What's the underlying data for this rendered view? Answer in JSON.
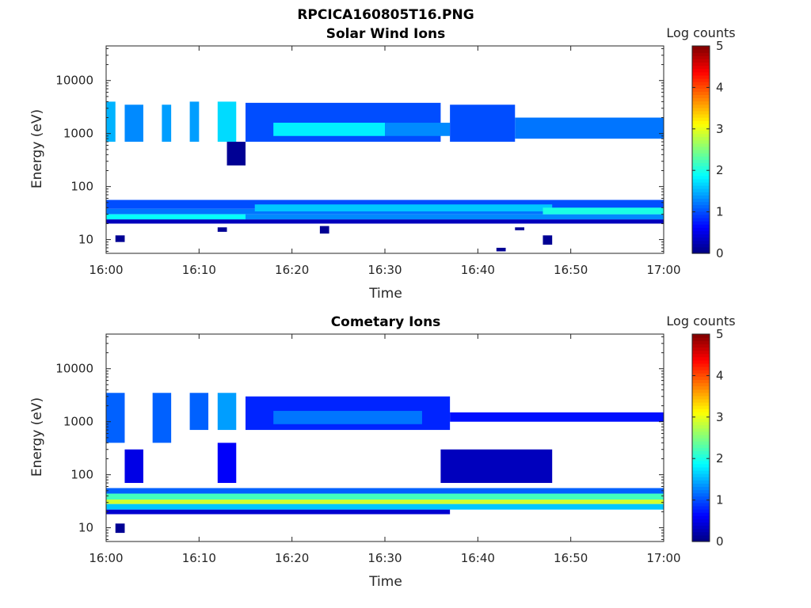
{
  "figure": {
    "filename": "RPCICA160805T16.PNG"
  },
  "chart_data": [
    {
      "type": "heatmap",
      "title": "Solar Wind Ions",
      "xlabel": "Time",
      "ylabel": "Energy (eV)",
      "x_ticks": [
        "16:00",
        "16:10",
        "16:20",
        "16:30",
        "16:40",
        "16:50",
        "17:00"
      ],
      "y_ticks": [
        "10",
        "100",
        "1000",
        "10000"
      ],
      "y_scale": "log",
      "ylim": [
        5.5,
        45000
      ],
      "xlim": [
        "16:00",
        "17:00"
      ],
      "colorbar": {
        "label": "Log counts",
        "ticks": [
          "0",
          "1",
          "2",
          "3",
          "4",
          "5"
        ],
        "range": [
          0,
          5
        ],
        "colormap": "jet"
      },
      "regions": [
        {
          "t": [
            0,
            60
          ],
          "e": [
            38,
            56
          ],
          "v": 1.0
        },
        {
          "t": [
            0,
            60
          ],
          "e": [
            30,
            38
          ],
          "v": 1.2
        },
        {
          "t": [
            0,
            15
          ],
          "e": [
            24,
            30
          ],
          "v": 1.9
        },
        {
          "t": [
            15,
            60
          ],
          "e": [
            24,
            30
          ],
          "v": 1.3
        },
        {
          "t": [
            0,
            60
          ],
          "e": [
            20,
            24
          ],
          "v": 0.3
        },
        {
          "t": [
            16,
            48
          ],
          "e": [
            34,
            46
          ],
          "v": 1.6
        },
        {
          "t": [
            47,
            60
          ],
          "e": [
            30,
            40
          ],
          "v": 2.0
        },
        {
          "t": [
            1,
            2
          ],
          "e": [
            9,
            12
          ],
          "v": 0.1
        },
        {
          "t": [
            12,
            13
          ],
          "e": [
            14,
            17
          ],
          "v": 0.1
        },
        {
          "t": [
            23,
            24
          ],
          "e": [
            13,
            18
          ],
          "v": 0.1
        },
        {
          "t": [
            44,
            45
          ],
          "e": [
            15,
            17
          ],
          "v": 0.1
        },
        {
          "t": [
            47,
            48
          ],
          "e": [
            8,
            12
          ],
          "v": 0.1
        },
        {
          "t": [
            42,
            43
          ],
          "e": [
            6,
            7
          ],
          "v": 0.1
        },
        {
          "t": [
            0,
            1
          ],
          "e": [
            700,
            4000
          ],
          "v": 1.5
        },
        {
          "t": [
            2,
            4
          ],
          "e": [
            700,
            3500
          ],
          "v": 1.3
        },
        {
          "t": [
            6,
            7
          ],
          "e": [
            700,
            3500
          ],
          "v": 1.4
        },
        {
          "t": [
            9,
            10
          ],
          "e": [
            700,
            4000
          ],
          "v": 1.4
        },
        {
          "t": [
            12,
            14
          ],
          "e": [
            700,
            4000
          ],
          "v": 1.7
        },
        {
          "t": [
            15,
            36
          ],
          "e": [
            700,
            3800
          ],
          "v": 1.0
        },
        {
          "t": [
            18,
            30
          ],
          "e": [
            900,
            1600
          ],
          "v": 1.8
        },
        {
          "t": [
            30,
            37
          ],
          "e": [
            900,
            1600
          ],
          "v": 1.3
        },
        {
          "t": [
            37,
            44
          ],
          "e": [
            700,
            3500
          ],
          "v": 1.0
        },
        {
          "t": [
            44,
            60
          ],
          "e": [
            800,
            2000
          ],
          "v": 1.2
        },
        {
          "t": [
            13,
            15
          ],
          "e": [
            250,
            700
          ],
          "v": 0.1
        }
      ]
    },
    {
      "type": "heatmap",
      "title": "Cometary Ions",
      "xlabel": "Time",
      "ylabel": "Energy (eV)",
      "x_ticks": [
        "16:00",
        "16:10",
        "16:20",
        "16:30",
        "16:40",
        "16:50",
        "17:00"
      ],
      "y_ticks": [
        "10",
        "100",
        "1000",
        "10000"
      ],
      "y_scale": "log",
      "ylim": [
        5.5,
        45000
      ],
      "xlim": [
        "16:00",
        "17:00"
      ],
      "colorbar": {
        "label": "Log counts",
        "ticks": [
          "0",
          "1",
          "2",
          "3",
          "4",
          "5"
        ],
        "range": [
          0,
          5
        ],
        "colormap": "jet"
      },
      "regions": [
        {
          "t": [
            0,
            60
          ],
          "e": [
            44,
            56
          ],
          "v": 1.1
        },
        {
          "t": [
            0,
            60
          ],
          "e": [
            34,
            44
          ],
          "v": 2.2
        },
        {
          "t": [
            0,
            60
          ],
          "e": [
            28,
            34
          ],
          "v": 2.9
        },
        {
          "t": [
            0,
            60
          ],
          "e": [
            22,
            28
          ],
          "v": 1.6
        },
        {
          "t": [
            0,
            37
          ],
          "e": [
            18,
            22
          ],
          "v": 0.4
        },
        {
          "t": [
            1,
            2
          ],
          "e": [
            8,
            12
          ],
          "v": 0.1
        },
        {
          "t": [
            0,
            2
          ],
          "e": [
            400,
            3500
          ],
          "v": 1.1
        },
        {
          "t": [
            5,
            7
          ],
          "e": [
            400,
            3500
          ],
          "v": 1.1
        },
        {
          "t": [
            9,
            11
          ],
          "e": [
            700,
            3500
          ],
          "v": 1.1
        },
        {
          "t": [
            12,
            14
          ],
          "e": [
            700,
            3500
          ],
          "v": 1.4
        },
        {
          "t": [
            15,
            37
          ],
          "e": [
            700,
            3000
          ],
          "v": 0.8
        },
        {
          "t": [
            18,
            34
          ],
          "e": [
            900,
            1600
          ],
          "v": 1.2
        },
        {
          "t": [
            37,
            60
          ],
          "e": [
            1000,
            1500
          ],
          "v": 0.7
        },
        {
          "t": [
            2,
            4
          ],
          "e": [
            70,
            300
          ],
          "v": 0.5
        },
        {
          "t": [
            12,
            14
          ],
          "e": [
            70,
            400
          ],
          "v": 0.6
        },
        {
          "t": [
            36,
            48
          ],
          "e": [
            70,
            300
          ],
          "v": 0.3
        }
      ]
    }
  ]
}
